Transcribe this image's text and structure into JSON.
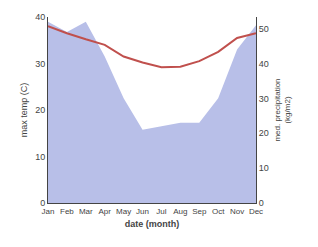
{
  "chart_data": {
    "type": "line",
    "categories": [
      "Jan",
      "Feb",
      "Mar",
      "Apr",
      "May",
      "Jun",
      "Jul",
      "Aug",
      "Sep",
      "Oct",
      "Nov",
      "Dec"
    ],
    "xlabel": "date (month)",
    "ylabel": "max temp (C)",
    "y2label": "med. precipitation\n(kg/m2)",
    "ylim": [
      0,
      40
    ],
    "yticks": [
      0,
      10,
      20,
      30,
      40
    ],
    "y2lim": [
      0,
      53.33
    ],
    "y2ticks": [
      0,
      10,
      20,
      30,
      40,
      50
    ],
    "grid": false,
    "series": [
      {
        "type": "area",
        "axis": "y2",
        "color": "#b8bfe8",
        "values": [
          52,
          49,
          52,
          42,
          30,
          21,
          22,
          23,
          23,
          30,
          44,
          51
        ]
      },
      {
        "type": "line",
        "color": "#c0504d",
        "values": [
          38.0,
          36.5,
          35.2,
          34.0,
          31.5,
          30.2,
          29.2,
          29.3,
          30.5,
          32.5,
          35.5,
          36.5
        ]
      }
    ]
  }
}
